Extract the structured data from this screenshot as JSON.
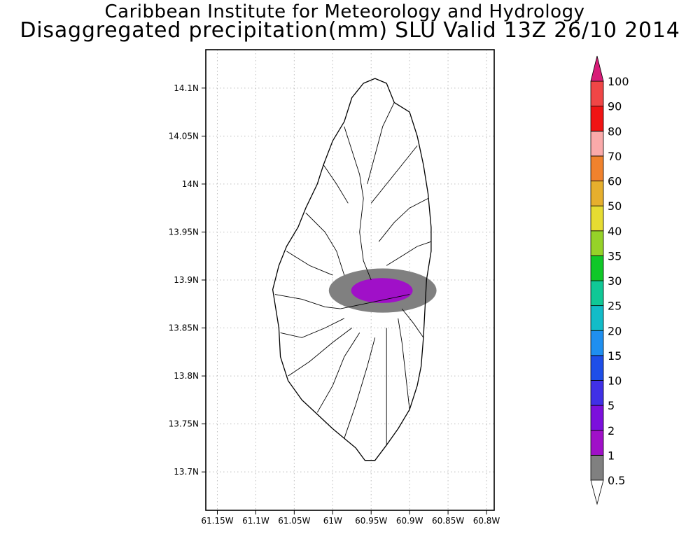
{
  "header": {
    "institution": "Caribbean Institute for Meteorology and Hydrology",
    "product": "Disaggregated precipitation(mm) SLU Valid 13Z 26/10 2014"
  },
  "map": {
    "lon_range": [
      -61.165,
      -60.79
    ],
    "lat_range": [
      13.66,
      14.14
    ],
    "lon_ticks": [
      {
        "value": -61.15,
        "label": "61.15W"
      },
      {
        "value": -61.1,
        "label": "61.1W"
      },
      {
        "value": -61.05,
        "label": "61.05W"
      },
      {
        "value": -61.0,
        "label": "61W"
      },
      {
        "value": -60.95,
        "label": "60.95W"
      },
      {
        "value": -60.9,
        "label": "60.9W"
      },
      {
        "value": -60.85,
        "label": "60.85W"
      },
      {
        "value": -60.8,
        "label": "60.8W"
      }
    ],
    "lat_ticks": [
      {
        "value": 14.1,
        "label": "14.1N"
      },
      {
        "value": 14.05,
        "label": "14.05N"
      },
      {
        "value": 14.0,
        "label": "14N"
      },
      {
        "value": 13.95,
        "label": "13.95N"
      },
      {
        "value": 13.9,
        "label": "13.9N"
      },
      {
        "value": 13.85,
        "label": "13.85N"
      },
      {
        "value": 13.8,
        "label": "13.8N"
      },
      {
        "value": 13.75,
        "label": "13.75N"
      },
      {
        "value": 13.7,
        "label": "13.7N"
      }
    ],
    "grid": true,
    "island_outline": [
      [
        -60.945,
        14.11
      ],
      [
        -60.93,
        14.105
      ],
      [
        -60.92,
        14.085
      ],
      [
        -60.9,
        14.075
      ],
      [
        -60.89,
        14.05
      ],
      [
        -60.882,
        14.02
      ],
      [
        -60.876,
        13.99
      ],
      [
        -60.872,
        13.955
      ],
      [
        -60.872,
        13.93
      ],
      [
        -60.878,
        13.9
      ],
      [
        -60.88,
        13.87
      ],
      [
        -60.882,
        13.84
      ],
      [
        -60.885,
        13.81
      ],
      [
        -60.89,
        13.79
      ],
      [
        -60.9,
        13.765
      ],
      [
        -60.915,
        13.745
      ],
      [
        -60.93,
        13.728
      ],
      [
        -60.945,
        13.712
      ],
      [
        -60.958,
        13.712
      ],
      [
        -60.97,
        13.725
      ],
      [
        -60.985,
        13.735
      ],
      [
        -61.0,
        13.745
      ],
      [
        -61.02,
        13.76
      ],
      [
        -61.04,
        13.775
      ],
      [
        -61.058,
        13.795
      ],
      [
        -61.068,
        13.82
      ],
      [
        -61.07,
        13.85
      ],
      [
        -61.075,
        13.875
      ],
      [
        -61.078,
        13.89
      ],
      [
        -61.07,
        13.915
      ],
      [
        -61.06,
        13.935
      ],
      [
        -61.045,
        13.955
      ],
      [
        -61.035,
        13.975
      ],
      [
        -61.02,
        14.0
      ],
      [
        -61.012,
        14.02
      ],
      [
        -61.0,
        14.045
      ],
      [
        -60.985,
        14.065
      ],
      [
        -60.975,
        14.09
      ],
      [
        -60.96,
        14.105
      ]
    ],
    "rivers": [
      [
        [
          -61.035,
          13.97
        ],
        [
          -61.01,
          13.95
        ],
        [
          -60.995,
          13.93
        ],
        [
          -60.985,
          13.905
        ]
      ],
      [
        [
          -61.06,
          13.93
        ],
        [
          -61.03,
          13.915
        ],
        [
          -61.0,
          13.905
        ]
      ],
      [
        [
          -61.075,
          13.885
        ],
        [
          -61.04,
          13.88
        ],
        [
          -61.01,
          13.872
        ],
        [
          -60.99,
          13.87
        ]
      ],
      [
        [
          -61.068,
          13.845
        ],
        [
          -61.04,
          13.84
        ],
        [
          -61.01,
          13.85
        ],
        [
          -60.985,
          13.86
        ]
      ],
      [
        [
          -61.058,
          13.8
        ],
        [
          -61.03,
          13.815
        ],
        [
          -61.0,
          13.835
        ],
        [
          -60.975,
          13.85
        ]
      ],
      [
        [
          -61.02,
          13.762
        ],
        [
          -61.0,
          13.79
        ],
        [
          -60.985,
          13.82
        ],
        [
          -60.965,
          13.845
        ]
      ],
      [
        [
          -60.985,
          13.735
        ],
        [
          -60.97,
          13.77
        ],
        [
          -60.955,
          13.81
        ],
        [
          -60.945,
          13.84
        ]
      ],
      [
        [
          -60.93,
          13.728
        ],
        [
          -60.93,
          13.77
        ],
        [
          -60.93,
          13.81
        ],
        [
          -60.93,
          13.85
        ]
      ],
      [
        [
          -60.9,
          13.765
        ],
        [
          -60.905,
          13.8
        ],
        [
          -60.91,
          13.835
        ],
        [
          -60.915,
          13.86
        ]
      ],
      [
        [
          -60.882,
          13.84
        ],
        [
          -60.895,
          13.855
        ],
        [
          -60.91,
          13.87
        ]
      ],
      [
        [
          -60.872,
          13.94
        ],
        [
          -60.89,
          13.935
        ],
        [
          -60.91,
          13.925
        ],
        [
          -60.93,
          13.915
        ]
      ],
      [
        [
          -60.876,
          13.985
        ],
        [
          -60.9,
          13.975
        ],
        [
          -60.92,
          13.96
        ],
        [
          -60.94,
          13.94
        ]
      ],
      [
        [
          -60.89,
          14.04
        ],
        [
          -60.91,
          14.02
        ],
        [
          -60.93,
          14.0
        ],
        [
          -60.95,
          13.98
        ]
      ],
      [
        [
          -60.92,
          14.085
        ],
        [
          -60.935,
          14.06
        ],
        [
          -60.945,
          14.03
        ],
        [
          -60.955,
          14.0
        ]
      ],
      [
        [
          -60.985,
          14.06
        ],
        [
          -60.975,
          14.035
        ],
        [
          -60.965,
          14.01
        ],
        [
          -60.96,
          13.985
        ]
      ],
      [
        [
          -61.012,
          14.02
        ],
        [
          -60.995,
          14.0
        ],
        [
          -60.98,
          13.98
        ]
      ],
      [
        [
          -60.96,
          13.985
        ],
        [
          -60.965,
          13.95
        ],
        [
          -60.96,
          13.92
        ],
        [
          -60.95,
          13.9
        ]
      ],
      [
        [
          -60.99,
          13.87
        ],
        [
          -60.96,
          13.875
        ],
        [
          -60.93,
          13.88
        ],
        [
          -60.9,
          13.885
        ]
      ]
    ],
    "rain_areas": [
      {
        "range": "0.5-1",
        "color": "#808080",
        "center": [
          -60.935,
          13.889
        ],
        "radius_lon": 0.07,
        "radius_lat": 0.023
      },
      {
        "range": "1-2",
        "color": "#a010c8",
        "center": [
          -60.936,
          13.889
        ],
        "radius_lon": 0.04,
        "radius_lat": 0.013
      }
    ]
  },
  "colorbar": {
    "levels": [
      "0.5",
      "1",
      "2",
      "5",
      "10",
      "15",
      "20",
      "25",
      "30",
      "35",
      "40",
      "50",
      "60",
      "70",
      "80",
      "90",
      "100"
    ],
    "colors": [
      "#808080",
      "#a010c8",
      "#7c10dc",
      "#4030e6",
      "#1e4ee8",
      "#1f8ff0",
      "#12bcc8",
      "#10c896",
      "#10c828",
      "#96d228",
      "#e6dc32",
      "#e6af2d",
      "#f0822d",
      "#faaaaa",
      "#f01414",
      "#f04646"
    ],
    "under_color": "#ffffff",
    "over_color": "#d81c78"
  }
}
